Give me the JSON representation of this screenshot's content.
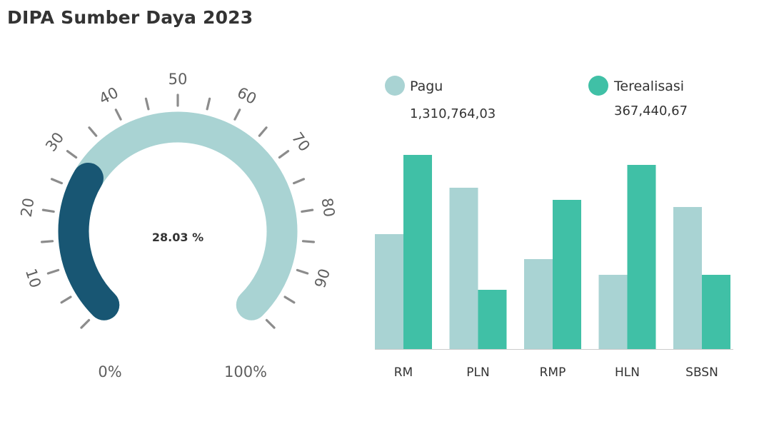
{
  "page": {
    "title": "DIPA Sumber Daya 2023"
  },
  "colors": {
    "pagu": "#a9d3d3",
    "terealisasi": "#40c0a6",
    "gauge_track": "#a9d3d3",
    "gauge_fill": "#185673",
    "tick": "#8c8c8c",
    "baseline": "#cccccc"
  },
  "chart_data": [
    {
      "type": "gauge",
      "min": 0,
      "max": 100,
      "value": 28.03,
      "value_label": "28.03 %",
      "min_label": "0%",
      "max_label": "100%",
      "tick_labels": [
        "10",
        "20",
        "30",
        "40",
        "50",
        "60",
        "70",
        "80",
        "90"
      ]
    },
    {
      "type": "bar",
      "categories": [
        "RM",
        "PLN",
        "RMP",
        "HLN",
        "SBSN"
      ],
      "series": [
        {
          "name": "Pagu",
          "total_label": "1,310,764,03",
          "values": [
            162,
            227,
            127,
            105,
            200
          ]
        },
        {
          "name": "Terealisasi",
          "total_label": "367,440,67",
          "values": [
            273,
            84,
            210,
            259,
            105
          ]
        }
      ],
      "ylim": [
        0,
        300
      ],
      "legend_position": "top",
      "grid": false
    }
  ]
}
